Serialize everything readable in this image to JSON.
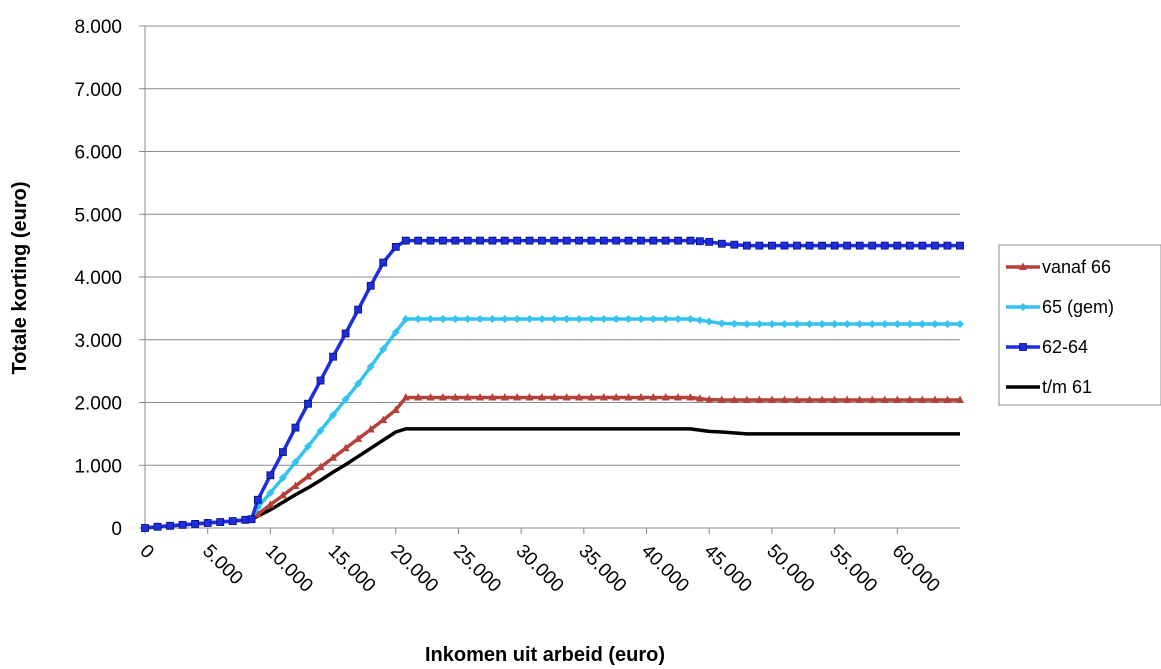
{
  "chart_data": {
    "type": "line",
    "xlabel": "Inkomen uit arbeid (euro)",
    "ylabel": "Totale korting (euro)",
    "xlim": [
      0,
      65000
    ],
    "ylim": [
      0,
      8000
    ],
    "xticks": [
      0,
      5000,
      10000,
      15000,
      20000,
      25000,
      30000,
      35000,
      40000,
      45000,
      50000,
      55000,
      60000
    ],
    "xtick_labels": [
      "0",
      "5.000",
      "10.000",
      "15.000",
      "20.000",
      "25.000",
      "30.000",
      "35.000",
      "40.000",
      "45.000",
      "50.000",
      "55.000",
      "60.000"
    ],
    "yticks": [
      0,
      1000,
      2000,
      3000,
      4000,
      5000,
      6000,
      7000,
      8000
    ],
    "ytick_labels": [
      "0",
      "1.000",
      "2.000",
      "3.000",
      "4.000",
      "5.000",
      "6.000",
      "7.000",
      "8.000"
    ],
    "grid": "horizontal",
    "legend_position": "right",
    "series": [
      {
        "name": "vanaf 66",
        "color": "#b5403a",
        "marker": "triangle",
        "points": [
          [
            0,
            0
          ],
          [
            1000,
            20
          ],
          [
            2000,
            35
          ],
          [
            3000,
            50
          ],
          [
            4000,
            65
          ],
          [
            5000,
            80
          ],
          [
            6000,
            95
          ],
          [
            7000,
            110
          ],
          [
            8000,
            130
          ],
          [
            8500,
            140
          ],
          [
            9000,
            220
          ],
          [
            10000,
            370
          ],
          [
            11000,
            520
          ],
          [
            12000,
            670
          ],
          [
            13000,
            820
          ],
          [
            14000,
            970
          ],
          [
            15000,
            1120
          ],
          [
            16000,
            1270
          ],
          [
            17000,
            1420
          ],
          [
            18000,
            1570
          ],
          [
            19000,
            1720
          ],
          [
            20000,
            1880
          ],
          [
            20800,
            2080
          ],
          [
            43500,
            2080
          ],
          [
            45000,
            2045
          ],
          [
            46000,
            2040
          ],
          [
            65000,
            2040
          ]
        ]
      },
      {
        "name": "65 (gem)",
        "color": "#33c3ee",
        "marker": "diamond",
        "points": [
          [
            0,
            0
          ],
          [
            1000,
            20
          ],
          [
            2000,
            35
          ],
          [
            3000,
            50
          ],
          [
            4000,
            65
          ],
          [
            5000,
            80
          ],
          [
            6000,
            95
          ],
          [
            7000,
            110
          ],
          [
            8000,
            130
          ],
          [
            8500,
            140
          ],
          [
            9000,
            330
          ],
          [
            10000,
            560
          ],
          [
            11000,
            800
          ],
          [
            12000,
            1050
          ],
          [
            13000,
            1300
          ],
          [
            14000,
            1550
          ],
          [
            15000,
            1800
          ],
          [
            16000,
            2050
          ],
          [
            17000,
            2300
          ],
          [
            18000,
            2570
          ],
          [
            19000,
            2850
          ],
          [
            20000,
            3120
          ],
          [
            20800,
            3330
          ],
          [
            43500,
            3330
          ],
          [
            45000,
            3290
          ],
          [
            46000,
            3260
          ],
          [
            48000,
            3250
          ],
          [
            65000,
            3250
          ]
        ]
      },
      {
        "name": "62-64",
        "color": "#1d2ee0",
        "marker": "square",
        "points": [
          [
            0,
            0
          ],
          [
            1000,
            20
          ],
          [
            2000,
            35
          ],
          [
            3000,
            50
          ],
          [
            4000,
            65
          ],
          [
            5000,
            80
          ],
          [
            6000,
            95
          ],
          [
            7000,
            110
          ],
          [
            8000,
            130
          ],
          [
            8500,
            140
          ],
          [
            9000,
            450
          ],
          [
            10000,
            840
          ],
          [
            11000,
            1210
          ],
          [
            12000,
            1600
          ],
          [
            13000,
            1980
          ],
          [
            14000,
            2350
          ],
          [
            15000,
            2730
          ],
          [
            16000,
            3100
          ],
          [
            17000,
            3480
          ],
          [
            18000,
            3860
          ],
          [
            19000,
            4230
          ],
          [
            20000,
            4480
          ],
          [
            20800,
            4580
          ],
          [
            43500,
            4580
          ],
          [
            45000,
            4560
          ],
          [
            46000,
            4530
          ],
          [
            48000,
            4500
          ],
          [
            65000,
            4500
          ]
        ]
      },
      {
        "name": "t/m 61",
        "color": "#000000",
        "marker": "none",
        "points": [
          [
            0,
            0
          ],
          [
            1000,
            20
          ],
          [
            2000,
            35
          ],
          [
            3000,
            50
          ],
          [
            4000,
            65
          ],
          [
            5000,
            80
          ],
          [
            6000,
            95
          ],
          [
            7000,
            110
          ],
          [
            8000,
            130
          ],
          [
            8500,
            140
          ],
          [
            9000,
            190
          ],
          [
            10000,
            290
          ],
          [
            11000,
            410
          ],
          [
            12000,
            530
          ],
          [
            13000,
            640
          ],
          [
            14000,
            760
          ],
          [
            15000,
            890
          ],
          [
            16000,
            1010
          ],
          [
            17000,
            1140
          ],
          [
            18000,
            1270
          ],
          [
            19000,
            1400
          ],
          [
            20000,
            1530
          ],
          [
            20800,
            1580
          ],
          [
            43500,
            1580
          ],
          [
            45000,
            1540
          ],
          [
            46000,
            1530
          ],
          [
            48000,
            1500
          ],
          [
            65000,
            1500
          ]
        ]
      }
    ]
  }
}
